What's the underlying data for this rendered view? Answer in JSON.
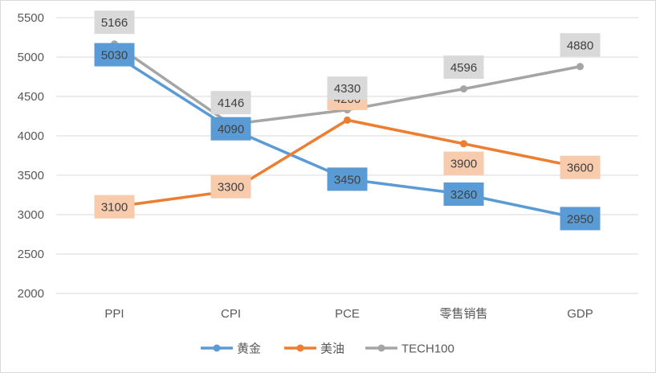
{
  "chart_data": {
    "type": "line",
    "title": "",
    "xlabel": "",
    "ylabel": "",
    "categories": [
      "PPI",
      "CPI",
      "PCE",
      "零售销售",
      "GDP"
    ],
    "ylim": [
      2000,
      5500
    ],
    "yticks": [
      2000,
      2500,
      3000,
      3500,
      4000,
      4500,
      5000,
      5500
    ],
    "grid": true,
    "legend_position": "bottom",
    "series": [
      {
        "name": "黄金",
        "color": "#5b9bd5",
        "label_bg": "#5b9bd5",
        "values": [
          5030,
          4090,
          3450,
          3260,
          2950
        ]
      },
      {
        "name": "美油",
        "color": "#ed7d31",
        "label_bg": "#f8cbad",
        "values": [
          3100,
          3300,
          4200,
          3900,
          3600
        ]
      },
      {
        "name": "TECH100",
        "color": "#a5a5a5",
        "label_bg": "#d9d9d9",
        "values": [
          5166,
          4146,
          4330,
          4596,
          4880
        ]
      }
    ]
  }
}
